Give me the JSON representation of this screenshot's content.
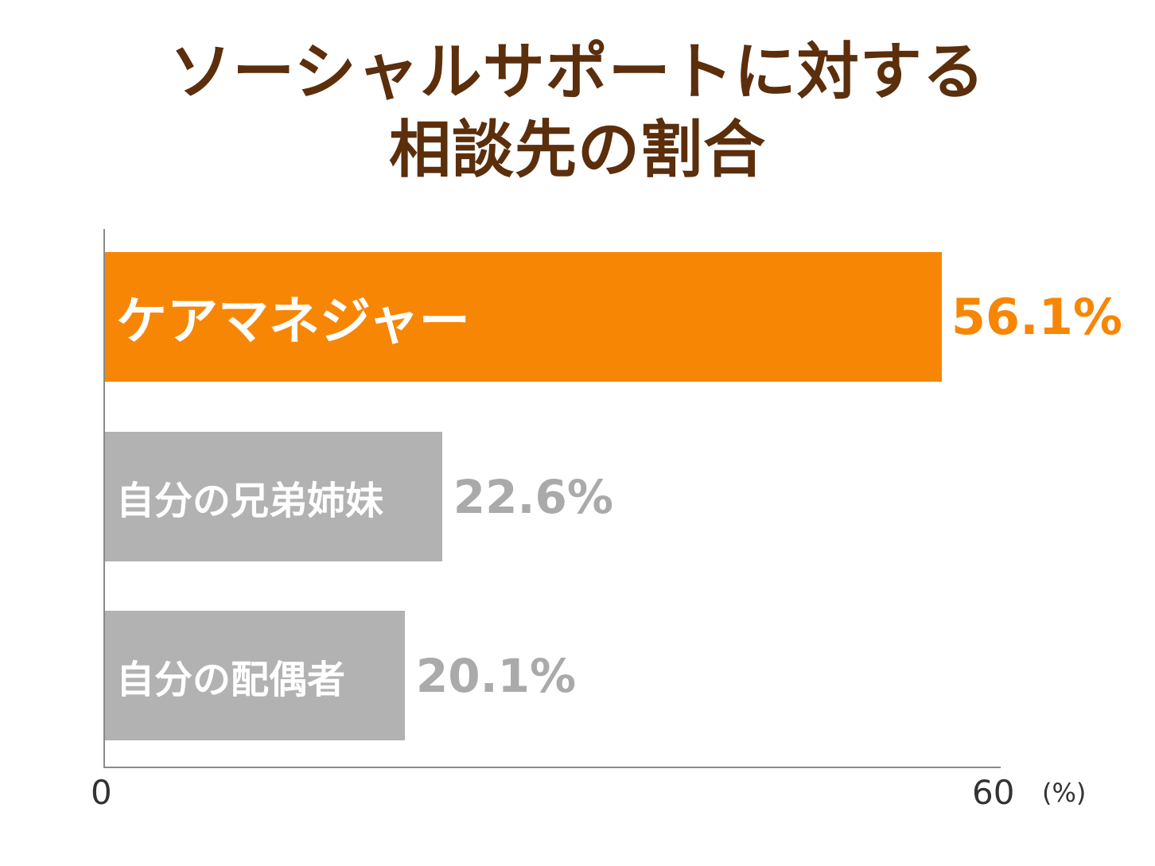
{
  "chart_data": {
    "type": "bar",
    "orientation": "horizontal",
    "title_lines": [
      "ソーシャルサポートに対する",
      "相談先の割合"
    ],
    "categories": [
      "ケアマネジャー",
      "自分の兄弟姉妹",
      "自分の配偶者"
    ],
    "values": [
      56.1,
      22.6,
      20.1
    ],
    "value_labels": [
      "56.1%",
      "22.6%",
      "20.1%"
    ],
    "xlim": [
      0,
      60
    ],
    "tick_labels": [
      "0",
      "60"
    ],
    "unit": "(%)",
    "grid": false,
    "highlight_index": 0,
    "colors": {
      "highlight": "#f88605",
      "default": "#b2b2b2",
      "title": "#5b2e0c",
      "axis": "#8a8a8a",
      "default_value_text": "#aaaaaa"
    }
  }
}
